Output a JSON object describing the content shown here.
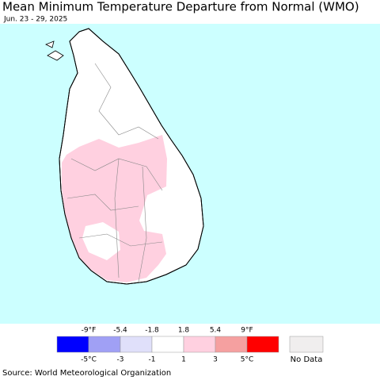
{
  "header": {
    "title": "Mean Minimum Temperature Departure from Normal (WMO)",
    "subtitle": "Jun. 23 - 29, 2025"
  },
  "legend": {
    "fahrenheit": [
      "-9°F",
      "-5.4",
      "-1.8",
      "1.8",
      "5.4",
      "9°F"
    ],
    "celsius": [
      "-5°C",
      "-3",
      "-1",
      "1",
      "3",
      "5°C"
    ],
    "colors": [
      "#0000ff",
      "#a0a0f5",
      "#e0e0fa",
      "#ffffff",
      "#ffd0e0",
      "#f5a0a0",
      "#ff0000"
    ],
    "no_data": {
      "label": "No Data",
      "color": "#f0eeee"
    }
  },
  "source": "Source: World Meteorological Organization"
}
